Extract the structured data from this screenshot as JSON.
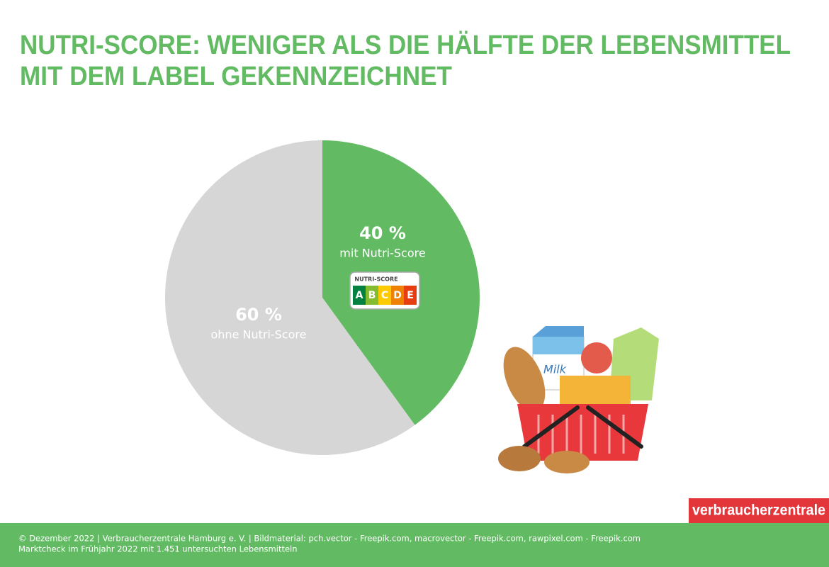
{
  "chart_data": {
    "type": "pie",
    "title": [
      "NUTRI-SCORE: WENIGER ALS DIE HÄLFTE DER LEBENSMITTEL",
      "MIT DEM LABEL GEKENNZEICHNET"
    ],
    "categories": [
      "mit Nutri-Score",
      "ohne Nutri-Score"
    ],
    "values": [
      40,
      60
    ],
    "value_labels": [
      "40 %",
      "60 %"
    ],
    "colors": [
      "#62bb63",
      "#d6d6d6"
    ]
  },
  "badge": {
    "title": "NUTRI-SCORE",
    "letters": [
      "A",
      "B",
      "C",
      "D",
      "E"
    ],
    "colors": [
      "#038141",
      "#85bb2f",
      "#fecb02",
      "#ee8100",
      "#e63e11"
    ]
  },
  "logo": "verbraucherzentrale",
  "footer": {
    "credits": "© Dezember 2022 | Verbraucherzentrale Hamburg e. V. | Bildmaterial: pch.vector - Freepik.com, macrovector - Freepik.com, rawpixel.com - Freepik.com",
    "note": "Marktcheck im Frühjahr 2022 mit 1.451 untersuchten Lebensmitteln"
  }
}
